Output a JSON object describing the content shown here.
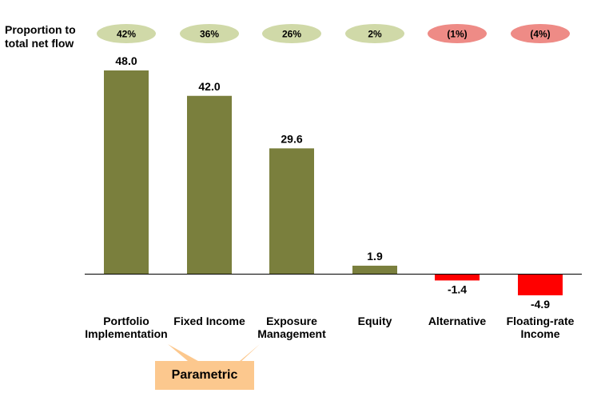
{
  "proportion_header": {
    "line1": "Proportion to",
    "line2": "total net flow"
  },
  "colors": {
    "positive_bar": "#7a7f3d",
    "negative_bar": "#ff0000",
    "positive_pill": "#d0d9a8",
    "negative_pill": "#ee8b86",
    "callout": "#fcc88e",
    "axis": "#000000"
  },
  "callout": {
    "label": "Parametric",
    "groups": [
      "Portfolio Implementation",
      "Fixed Income",
      "Exposure Management"
    ]
  },
  "chart_data": {
    "type": "bar",
    "title": "",
    "xlabel": "",
    "ylabel": "",
    "categories": [
      [
        "Portfolio",
        "Implementation"
      ],
      [
        "Fixed Income"
      ],
      [
        "Exposure",
        "Management"
      ],
      [
        "Equity"
      ],
      [
        "Alternative"
      ],
      [
        "Floating-rate",
        "Income"
      ]
    ],
    "values": [
      48.0,
      42.0,
      29.6,
      1.9,
      -1.4,
      -4.9
    ],
    "value_labels": [
      "48.0",
      "42.0",
      "29.6",
      "1.9",
      "-1.4",
      "-4.9"
    ],
    "proportion_labels": [
      "42%",
      "36%",
      "26%",
      "2%",
      "(1%)",
      "(4%)"
    ],
    "ylim": [
      -5,
      48
    ],
    "grid": false
  }
}
